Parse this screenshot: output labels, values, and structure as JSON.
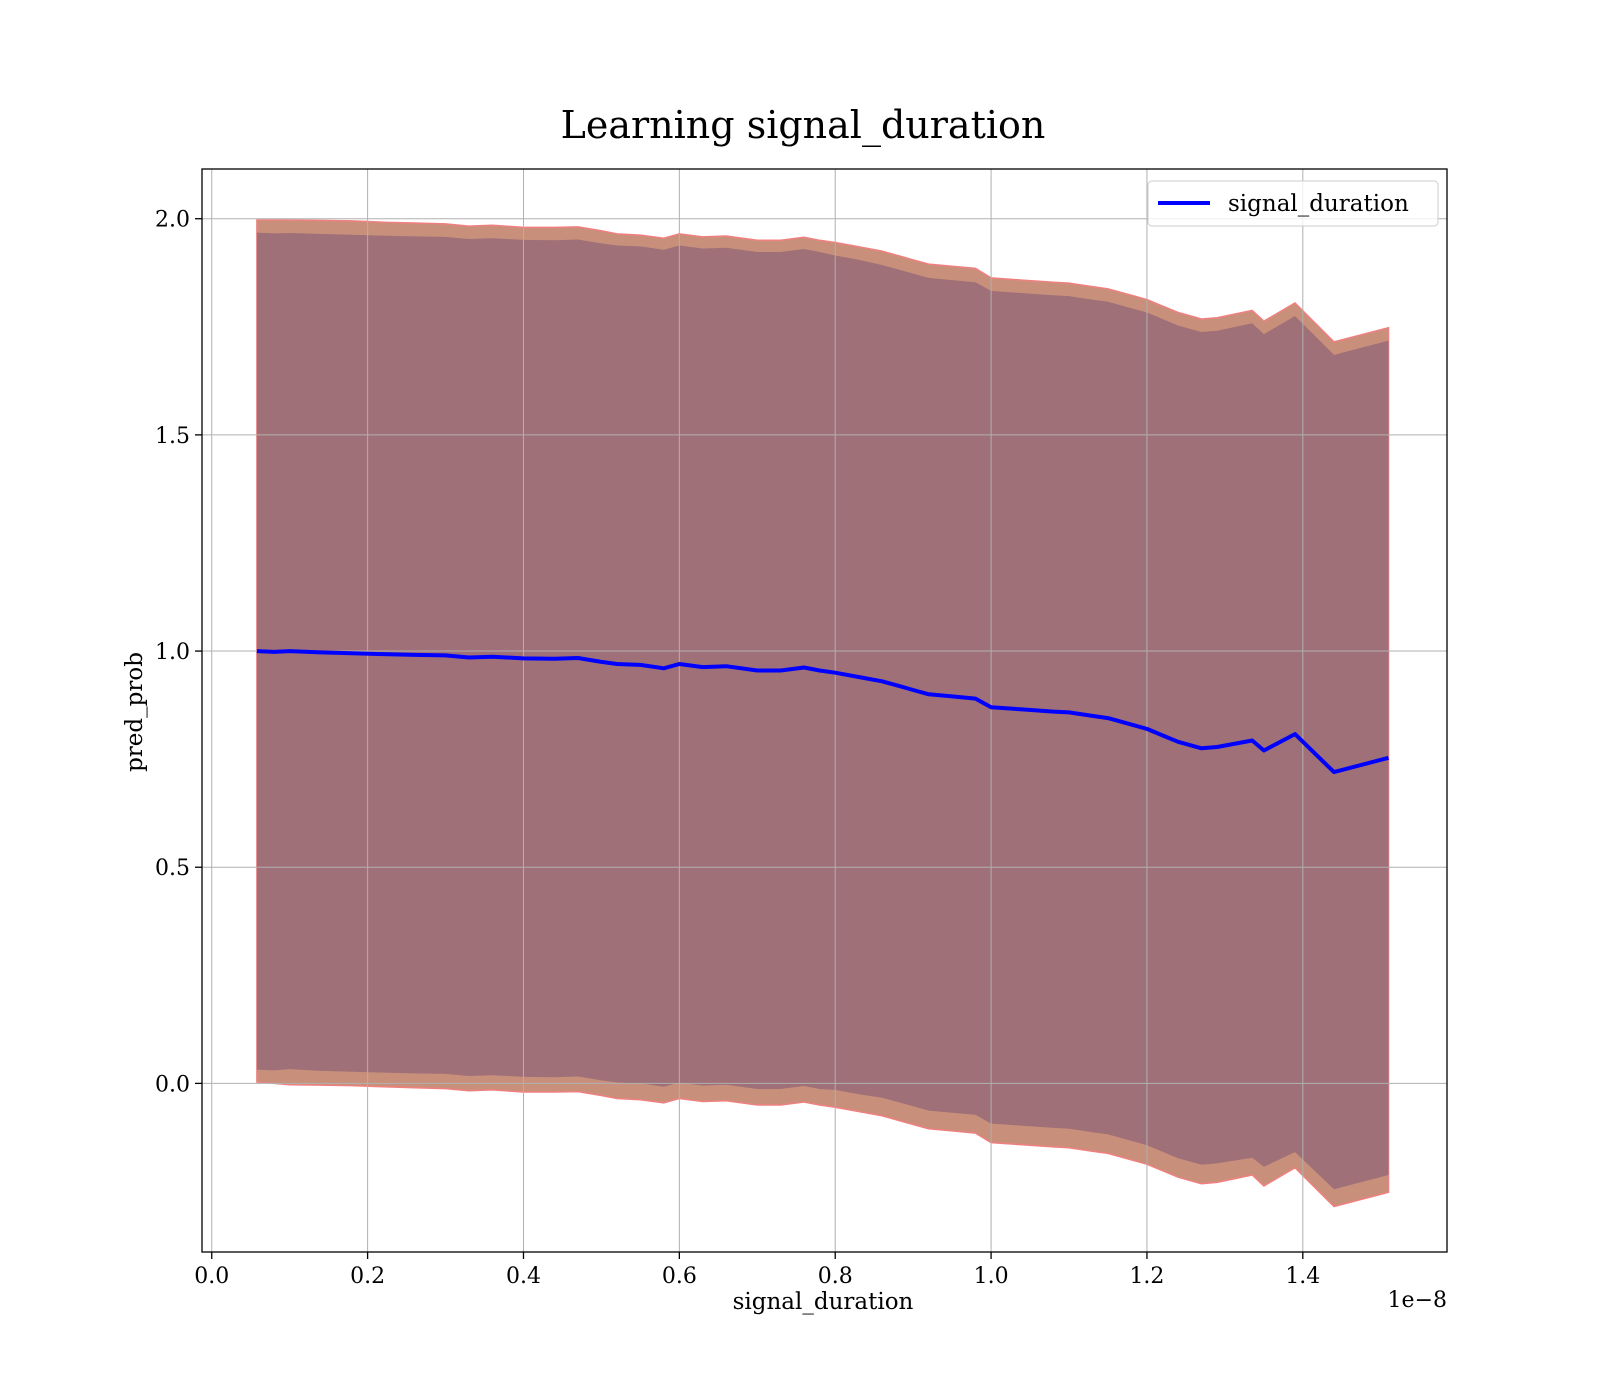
{
  "chart_data": {
    "type": "line",
    "title": "Learning signal_duration",
    "xlabel": "signal_duration",
    "ylabel": "pred_prob",
    "x_offset_label": "1e−8",
    "xlim": [
      -0.0125,
      1.585
    ],
    "ylim": [
      -0.39,
      2.115
    ],
    "grid": true,
    "legend_position": "upper right",
    "x_ticks": [
      "0.0",
      "0.2",
      "0.4",
      "0.6",
      "0.8",
      "1.0",
      "1.2",
      "1.4"
    ],
    "x_tick_values": [
      0.0,
      0.2,
      0.4,
      0.6,
      0.8,
      1.0,
      1.2,
      1.4
    ],
    "y_ticks": [
      "0.0",
      "0.5",
      "1.0",
      "1.5",
      "2.0"
    ],
    "y_tick_values": [
      0.0,
      0.5,
      1.0,
      1.5,
      2.0
    ],
    "colors": {
      "line": "#0000ff",
      "outer_band": "#c8907a",
      "outer_band_edge": "#f08080",
      "inner_band": "#a07078",
      "grid": "#b0b0b0"
    },
    "series": [
      {
        "name": "signal_duration",
        "x": [
          0.058,
          0.08,
          0.1,
          0.14,
          0.18,
          0.22,
          0.26,
          0.3,
          0.33,
          0.36,
          0.4,
          0.44,
          0.47,
          0.5,
          0.52,
          0.55,
          0.58,
          0.6,
          0.63,
          0.66,
          0.7,
          0.73,
          0.76,
          0.78,
          0.8,
          0.83,
          0.86,
          0.88,
          0.9,
          0.92,
          0.95,
          0.98,
          1.0,
          1.04,
          1.08,
          1.1,
          1.13,
          1.15,
          1.18,
          1.2,
          1.22,
          1.24,
          1.27,
          1.29,
          1.335,
          1.35,
          1.39,
          1.44,
          1.51
        ],
        "y": [
          1.0,
          0.998,
          1.0,
          0.997,
          0.995,
          0.993,
          0.991,
          0.99,
          0.985,
          0.987,
          0.983,
          0.982,
          0.984,
          0.975,
          0.97,
          0.968,
          0.96,
          0.97,
          0.963,
          0.965,
          0.955,
          0.955,
          0.962,
          0.955,
          0.95,
          0.94,
          0.93,
          0.92,
          0.91,
          0.9,
          0.895,
          0.89,
          0.87,
          0.865,
          0.86,
          0.858,
          0.85,
          0.845,
          0.83,
          0.82,
          0.805,
          0.79,
          0.775,
          0.778,
          0.793,
          0.77,
          0.808,
          0.72,
          0.753
        ],
        "outer_upper": [
          1.997,
          1.997,
          1.997,
          1.996,
          1.995,
          1.992,
          1.99,
          1.988,
          1.983,
          1.985,
          1.98,
          1.98,
          1.981,
          1.972,
          1.965,
          1.962,
          1.955,
          1.965,
          1.958,
          1.96,
          1.95,
          1.95,
          1.957,
          1.95,
          1.945,
          1.935,
          1.925,
          1.915,
          1.905,
          1.895,
          1.89,
          1.885,
          1.863,
          1.858,
          1.853,
          1.851,
          1.843,
          1.838,
          1.823,
          1.813,
          1.798,
          1.783,
          1.768,
          1.771,
          1.788,
          1.763,
          1.805,
          1.715,
          1.748
        ],
        "outer_lower": [
          0.003,
          0.0,
          -0.003,
          -0.004,
          -0.005,
          -0.008,
          -0.01,
          -0.012,
          -0.017,
          -0.015,
          -0.02,
          -0.02,
          -0.019,
          -0.028,
          -0.035,
          -0.038,
          -0.045,
          -0.035,
          -0.042,
          -0.04,
          -0.05,
          -0.05,
          -0.043,
          -0.05,
          -0.055,
          -0.065,
          -0.075,
          -0.085,
          -0.095,
          -0.105,
          -0.11,
          -0.115,
          -0.137,
          -0.142,
          -0.147,
          -0.149,
          -0.157,
          -0.162,
          -0.177,
          -0.187,
          -0.202,
          -0.217,
          -0.232,
          -0.229,
          -0.212,
          -0.237,
          -0.195,
          -0.285,
          -0.252
        ],
        "inner_upper": [
          1.968,
          1.966,
          1.967,
          1.965,
          1.963,
          1.961,
          1.959,
          1.958,
          1.953,
          1.955,
          1.951,
          1.95,
          1.952,
          1.943,
          1.938,
          1.936,
          1.928,
          1.938,
          1.931,
          1.933,
          1.923,
          1.923,
          1.93,
          1.923,
          1.915,
          1.905,
          1.893,
          1.883,
          1.873,
          1.863,
          1.858,
          1.853,
          1.833,
          1.828,
          1.823,
          1.821,
          1.813,
          1.808,
          1.793,
          1.783,
          1.768,
          1.753,
          1.738,
          1.741,
          1.758,
          1.733,
          1.775,
          1.685,
          1.718
        ],
        "inner_lower": [
          0.032,
          0.03,
          0.033,
          0.029,
          0.027,
          0.025,
          0.023,
          0.022,
          0.017,
          0.019,
          0.015,
          0.014,
          0.016,
          0.007,
          0.002,
          0.0,
          -0.008,
          0.002,
          -0.005,
          -0.003,
          -0.013,
          -0.013,
          -0.006,
          -0.013,
          -0.015,
          -0.025,
          -0.033,
          -0.043,
          -0.053,
          -0.063,
          -0.068,
          -0.073,
          -0.093,
          -0.098,
          -0.103,
          -0.105,
          -0.113,
          -0.118,
          -0.133,
          -0.143,
          -0.158,
          -0.173,
          -0.188,
          -0.185,
          -0.172,
          -0.193,
          -0.159,
          -0.245,
          -0.212
        ]
      }
    ]
  }
}
